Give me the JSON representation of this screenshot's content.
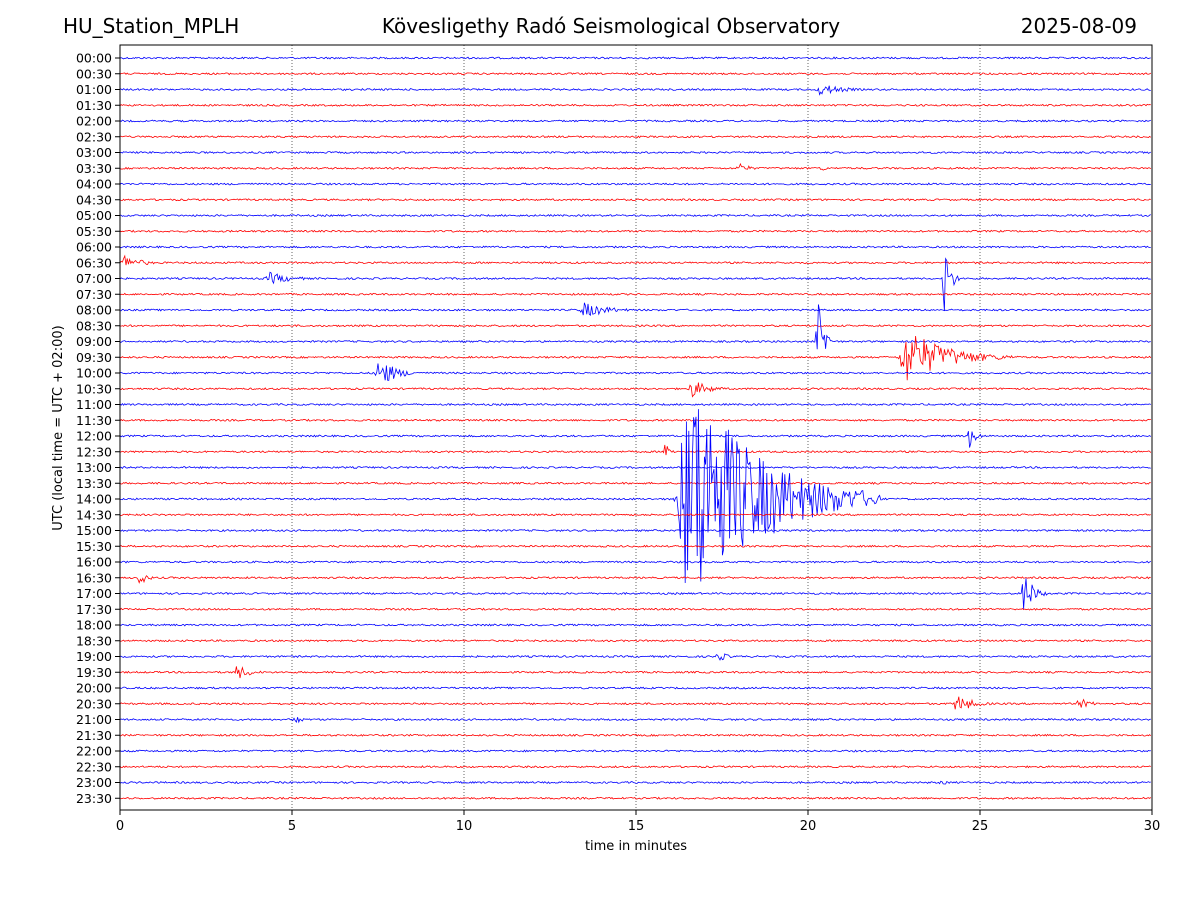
{
  "header": {
    "station": "HU_Station_MPLH",
    "observatory": "Kövesligethy Radó Seismological Observatory",
    "date": "2025-08-09"
  },
  "chart_data": {
    "type": "line",
    "title": "Kövesligethy Radó Seismological Observatory",
    "xlabel": "time in minutes",
    "ylabel": "UTC (local time = UTC + 02:00)",
    "xlim": [
      0,
      30
    ],
    "xticks": [
      0,
      5,
      10,
      15,
      20,
      25,
      30
    ],
    "grid": "vertical dotted at x ticks",
    "colors": {
      "even_trace": "#0000ff",
      "odd_trace": "#ff0000"
    },
    "rows": [
      "00:00",
      "00:30",
      "01:00",
      "01:30",
      "02:00",
      "02:30",
      "03:00",
      "03:30",
      "04:00",
      "04:30",
      "05:00",
      "05:30",
      "06:00",
      "06:30",
      "07:00",
      "07:30",
      "08:00",
      "08:30",
      "09:00",
      "09:30",
      "10:00",
      "10:30",
      "11:00",
      "11:30",
      "12:00",
      "12:30",
      "13:00",
      "13:30",
      "14:00",
      "14:30",
      "15:00",
      "15:30",
      "16:00",
      "16:30",
      "17:00",
      "17:30",
      "18:00",
      "18:30",
      "19:00",
      "19:30",
      "20:00",
      "20:30",
      "21:00",
      "21:30",
      "22:00",
      "22:30",
      "23:00",
      "23:30"
    ],
    "events": [
      {
        "row": "01:00",
        "start_min": 20.2,
        "duration_min": 2.0,
        "amplitude_rows": 0.4
      },
      {
        "row": "03:30",
        "start_min": 17.9,
        "duration_min": 1.0,
        "amplitude_rows": 0.35
      },
      {
        "row": "03:30",
        "start_min": 20.3,
        "duration_min": 0.7,
        "amplitude_rows": 0.2
      },
      {
        "row": "06:30",
        "start_min": 0.0,
        "duration_min": 1.5,
        "amplitude_rows": 0.5
      },
      {
        "row": "07:00",
        "start_min": 4.2,
        "duration_min": 2.0,
        "amplitude_rows": 0.4
      },
      {
        "row": "07:00",
        "start_min": 23.9,
        "duration_min": 0.5,
        "amplitude_rows": 3.0
      },
      {
        "row": "08:00",
        "start_min": 13.3,
        "duration_min": 2.2,
        "amplitude_rows": 0.5
      },
      {
        "row": "09:00",
        "start_min": 20.2,
        "duration_min": 0.6,
        "amplitude_rows": 3.2
      },
      {
        "row": "09:30",
        "start_min": 22.6,
        "duration_min": 3.5,
        "amplitude_rows": 1.8
      },
      {
        "row": "10:00",
        "start_min": 7.4,
        "duration_min": 1.5,
        "amplitude_rows": 1.0
      },
      {
        "row": "10:30",
        "start_min": 16.5,
        "duration_min": 1.5,
        "amplitude_rows": 0.6
      },
      {
        "row": "12:00",
        "start_min": 24.6,
        "duration_min": 0.6,
        "amplitude_rows": 1.0
      },
      {
        "row": "12:30",
        "start_min": 15.8,
        "duration_min": 0.5,
        "amplitude_rows": 0.7
      },
      {
        "row": "14:00",
        "start_min": 16.1,
        "duration_min": 6.0,
        "amplitude_rows": 8.0
      },
      {
        "row": "16:30",
        "start_min": 0.5,
        "duration_min": 0.7,
        "amplitude_rows": 0.5
      },
      {
        "row": "17:00",
        "start_min": 26.2,
        "duration_min": 0.8,
        "amplitude_rows": 1.6
      },
      {
        "row": "19:00",
        "start_min": 17.3,
        "duration_min": 0.8,
        "amplitude_rows": 0.4
      },
      {
        "row": "19:30",
        "start_min": 3.3,
        "duration_min": 1.2,
        "amplitude_rows": 0.5
      },
      {
        "row": "20:30",
        "start_min": 24.2,
        "duration_min": 1.5,
        "amplitude_rows": 0.6
      },
      {
        "row": "20:30",
        "start_min": 27.8,
        "duration_min": 1.0,
        "amplitude_rows": 0.4
      },
      {
        "row": "21:00",
        "start_min": 5.0,
        "duration_min": 0.6,
        "amplitude_rows": 0.4
      },
      {
        "row": "23:00",
        "start_min": 23.8,
        "duration_min": 0.7,
        "amplitude_rows": 0.2
      }
    ]
  }
}
